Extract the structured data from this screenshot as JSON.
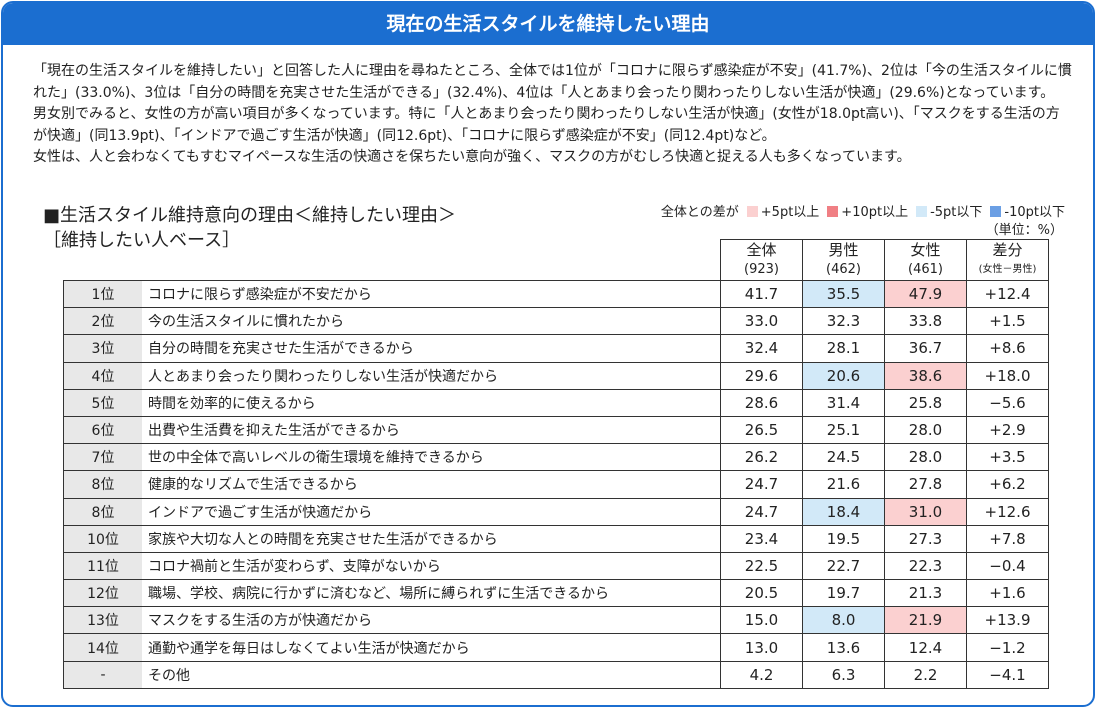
{
  "header": {
    "title": "現在の生活スタイルを維持したい理由"
  },
  "intro": [
    "「現在の生活スタイルを維持したい」と回答した人に理由を尋ねたところ、全体では1位が「コロナに限らず感染症が不安」(41.7%)、2位は「今の生活スタイルに慣れた」(33.0%)、3位は「自分の時間を充実させた生活ができる」(32.4%)、4位は「人とあまり会ったり関わったりしない生活が快適」(29.6%)となっています。",
    "男女別でみると、女性の方が高い項目が多くなっています。特に「人とあまり会ったり関わったりしない生活が快適」(女性が18.0pt高い)、「マスクをする生活の方が快適」(同13.9pt)、「インドアで過ごす生活が快適」(同12.6pt)、「コロナに限らず感染症が不安」(同12.4pt)など。",
    "女性は、人と会わなくてもすむマイペースな生活の快適さを保ちたい意向が強く、マスクの方がむしろ快適と捉える人も多くなっています。"
  ],
  "section": {
    "title": "■生活スタイル維持意向の理由＜維持したい理由＞",
    "subtitle": "［維持したい人ベース］",
    "unit": "（単位：%）"
  },
  "legend": {
    "label": "全体との差が",
    "items": [
      {
        "label": "+5pt以上",
        "color": "#fbd0d0"
      },
      {
        "label": "+10pt以上",
        "color": "#f07f84"
      },
      {
        "label": "-5pt以下",
        "color": "#d2e9f8"
      },
      {
        "label": "-10pt以下",
        "color": "#6b9fe4"
      }
    ]
  },
  "table": {
    "columns": [
      [
        "全体",
        "(923)"
      ],
      [
        "男性",
        "(462)"
      ],
      [
        "女性",
        "(461)"
      ],
      [
        "差分",
        "(女性－男性)"
      ]
    ],
    "rows": [
      [
        "1位",
        "コロナに限らず感染症が不安だから",
        "41.7",
        "35.5",
        "47.9",
        "+12.4"
      ],
      [
        "2位",
        "今の生活スタイルに慣れたから",
        "33.0",
        "32.3",
        "33.8",
        "+1.5"
      ],
      [
        "3位",
        "自分の時間を充実させた生活ができるから",
        "32.4",
        "28.1",
        "36.7",
        "+8.6"
      ],
      [
        "4位",
        "人とあまり会ったり関わったりしない生活が快適だから",
        "29.6",
        "20.6",
        "38.6",
        "+18.0"
      ],
      [
        "5位",
        "時間を効率的に使えるから",
        "28.6",
        "31.4",
        "25.8",
        "−5.6"
      ],
      [
        "6位",
        "出費や生活費を抑えた生活ができるから",
        "26.5",
        "25.1",
        "28.0",
        "+2.9"
      ],
      [
        "7位",
        "世の中全体で高いレベルの衛生環境を維持できるから",
        "26.2",
        "24.5",
        "28.0",
        "+3.5"
      ],
      [
        "8位",
        "健康的なリズムで生活できるから",
        "24.7",
        "21.6",
        "27.8",
        "+6.2"
      ],
      [
        "8位",
        "インドアで過ごす生活が快適だから",
        "24.7",
        "18.4",
        "31.0",
        "+12.6"
      ],
      [
        "10位",
        "家族や大切な人との時間を充実させた生活ができるから",
        "23.4",
        "19.5",
        "27.3",
        "+7.8"
      ],
      [
        "11位",
        "コロナ禍前と生活が変わらず、支障がないから",
        "22.5",
        "22.7",
        "22.3",
        "−0.4"
      ],
      [
        "12位",
        "職場、学校、病院に行かずに済むなど、場所に縛られずに生活できるから",
        "20.5",
        "19.7",
        "21.3",
        "+1.6"
      ],
      [
        "13位",
        "マスクをする生活の方が快適だから",
        "15.0",
        "8.0",
        "21.9",
        "+13.9"
      ],
      [
        "14位",
        "通勤や通学を毎日はしなくてよい生活が快適だから",
        "13.0",
        "13.6",
        "12.4",
        "−1.2"
      ],
      [
        "-",
        "その他",
        "4.2",
        "6.3",
        "2.2",
        "−4.1"
      ]
    ]
  }
}
